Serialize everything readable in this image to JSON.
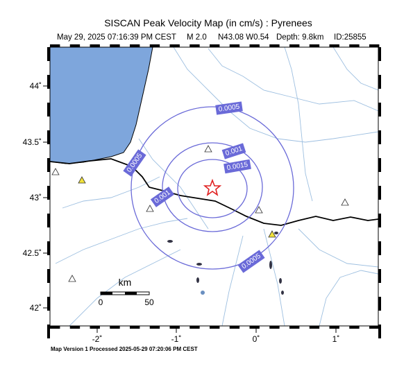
{
  "header": {
    "title": "SISCAN Peak Velocity Map (in cm/s) : Pyrenees",
    "subtitle": [
      "May 29, 2025 07:16:39 PM CEST",
      "M 2.0",
      "N43.08 W0.54",
      "Depth: 9.8km",
      "ID:25855"
    ]
  },
  "map": {
    "x_ticks": [
      "-2˚",
      "-1˚",
      "0˚",
      "1˚"
    ],
    "y_ticks": [
      "44˚",
      "43.5˚",
      "43˚",
      "42.5˚",
      "42˚"
    ],
    "contour_labels": [
      "0.0005",
      "0.001",
      "0.0015",
      "0.0005",
      "0.001",
      "0.0005"
    ],
    "scale_bar": {
      "unit": "km",
      "start": "0",
      "end": "50"
    }
  },
  "footer": "Map Version 1 Processed 2025-05-29 07:20:06 PM CEST"
}
